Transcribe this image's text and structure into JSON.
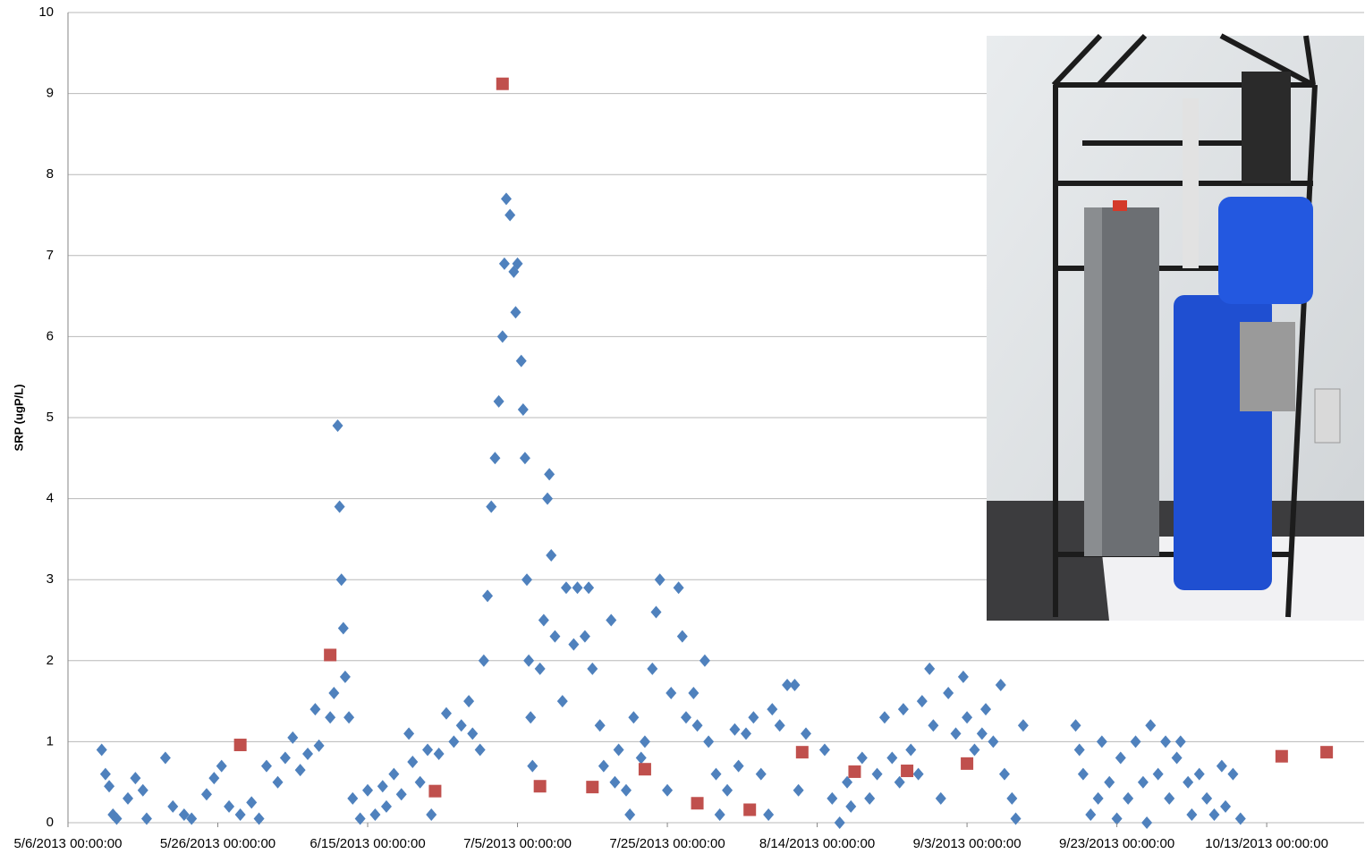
{
  "chart_data": {
    "type": "scatter",
    "y_label": "SRP (ugP/L)",
    "ylim": [
      0,
      10
    ],
    "yticks": [
      0,
      1,
      2,
      3,
      4,
      5,
      6,
      7,
      8,
      9,
      10
    ],
    "grid": true,
    "xlim": [
      "2013-05-06T00:00",
      "2013-10-26T00:00"
    ],
    "xticks": [
      {
        "value": "2013-05-06T00:00",
        "label": "5/6/2013 00:00:00"
      },
      {
        "value": "2013-05-26T00:00",
        "label": "5/26/2013 00:00:00"
      },
      {
        "value": "2013-06-15T00:00",
        "label": "6/15/2013 00:00:00"
      },
      {
        "value": "2013-07-05T00:00",
        "label": "7/5/2013 00:00:00"
      },
      {
        "value": "2013-07-25T00:00",
        "label": "7/25/2013 00:00:00"
      },
      {
        "value": "2013-08-14T00:00",
        "label": "8/14/2013 00:00:00"
      },
      {
        "value": "2013-09-03T00:00",
        "label": "9/3/2013 00:00:00"
      },
      {
        "value": "2013-09-23T00:00",
        "label": "9/23/2013 00:00:00"
      },
      {
        "value": "2013-10-13T00:00",
        "label": "10/13/2013 00:00:00"
      }
    ],
    "series": [
      {
        "color": "#4f81bd",
        "marker": "diamond",
        "x": [
          "2013-05-10T12:00",
          "2013-05-11T00:00",
          "2013-05-11T12:00",
          "2013-05-12T00:00",
          "2013-05-12T12:00",
          "2013-05-14T00:00",
          "2013-05-15T00:00",
          "2013-05-16T00:00",
          "2013-05-16T12:00",
          "2013-05-19T00:00",
          "2013-05-20T00:00",
          "2013-05-21T12:00",
          "2013-05-22T12:00",
          "2013-05-24T12:00",
          "2013-05-25T12:00",
          "2013-05-26T12:00",
          "2013-05-27T12:00",
          "2013-05-29T00:00",
          "2013-05-30T12:00",
          "2013-05-31T12:00",
          "2013-06-01T12:00",
          "2013-06-03T00:00",
          "2013-06-04T00:00",
          "2013-06-05T00:00",
          "2013-06-06T00:00",
          "2013-06-07T00:00",
          "2013-06-08T00:00",
          "2013-06-08T12:00",
          "2013-06-10T00:00",
          "2013-06-10T12:00",
          "2013-06-11T00:00",
          "2013-06-11T06:00",
          "2013-06-11T12:00",
          "2013-06-11T18:00",
          "2013-06-12T00:00",
          "2013-06-12T12:00",
          "2013-06-13T00:00",
          "2013-06-14T00:00",
          "2013-06-15T00:00",
          "2013-06-16T00:00",
          "2013-06-17T00:00",
          "2013-06-17T12:00",
          "2013-06-18T12:00",
          "2013-06-19T12:00",
          "2013-06-20T12:00",
          "2013-06-21T00:00",
          "2013-06-22T00:00",
          "2013-06-23T00:00",
          "2013-06-23T12:00",
          "2013-06-24T12:00",
          "2013-06-25T12:00",
          "2013-06-26T12:00",
          "2013-06-27T12:00",
          "2013-06-28T12:00",
          "2013-06-29T00:00",
          "2013-06-30T00:00",
          "2013-06-30T12:00",
          "2013-07-01T00:00",
          "2013-07-01T12:00",
          "2013-07-02T00:00",
          "2013-07-02T12:00",
          "2013-07-03T00:00",
          "2013-07-03T06:00",
          "2013-07-03T12:00",
          "2013-07-04T00:00",
          "2013-07-04T12:00",
          "2013-07-04T18:00",
          "2013-07-05T00:00",
          "2013-07-05T12:00",
          "2013-07-05T18:00",
          "2013-07-06T00:00",
          "2013-07-06T06:00",
          "2013-07-06T12:00",
          "2013-07-06T18:00",
          "2013-07-07T00:00",
          "2013-07-08T00:00",
          "2013-07-08T12:00",
          "2013-07-09T00:00",
          "2013-07-09T06:00",
          "2013-07-09T12:00",
          "2013-07-10T00:00",
          "2013-07-11T00:00",
          "2013-07-11T12:00",
          "2013-07-12T12:00",
          "2013-07-13T00:00",
          "2013-07-14T00:00",
          "2013-07-14T12:00",
          "2013-07-15T00:00",
          "2013-07-16T00:00",
          "2013-07-16T12:00",
          "2013-07-17T12:00",
          "2013-07-18T00:00",
          "2013-07-18T12:00",
          "2013-07-19T12:00",
          "2013-07-20T00:00",
          "2013-07-20T12:00",
          "2013-07-21T12:00",
          "2013-07-22T00:00",
          "2013-07-23T00:00",
          "2013-07-23T12:00",
          "2013-07-24T00:00",
          "2013-07-25T00:00",
          "2013-07-25T12:00",
          "2013-07-26T12:00",
          "2013-07-27T00:00",
          "2013-07-27T12:00",
          "2013-07-28T12:00",
          "2013-07-29T00:00",
          "2013-07-30T00:00",
          "2013-07-30T12:00",
          "2013-07-31T12:00",
          "2013-08-01T00:00",
          "2013-08-02T00:00",
          "2013-08-03T00:00",
          "2013-08-03T12:00",
          "2013-08-04T12:00",
          "2013-08-05T12:00",
          "2013-08-06T12:00",
          "2013-08-07T12:00",
          "2013-08-08T00:00",
          "2013-08-09T00:00",
          "2013-08-10T00:00",
          "2013-08-11T00:00",
          "2013-08-11T12:00",
          "2013-08-12T12:00",
          "2013-08-15T00:00",
          "2013-08-16T00:00",
          "2013-08-17T00:00",
          "2013-08-18T00:00",
          "2013-08-18T12:00",
          "2013-08-20T00:00",
          "2013-08-21T00:00",
          "2013-08-22T00:00",
          "2013-08-23T00:00",
          "2013-08-24T00:00",
          "2013-08-25T00:00",
          "2013-08-25T12:00",
          "2013-08-26T12:00",
          "2013-08-27T12:00",
          "2013-08-28T00:00",
          "2013-08-29T00:00",
          "2013-08-29T12:00",
          "2013-08-30T12:00",
          "2013-08-31T12:00",
          "2013-09-01T12:00",
          "2013-09-02T12:00",
          "2013-09-03T00:00",
          "2013-09-04T00:00",
          "2013-09-05T00:00",
          "2013-09-05T12:00",
          "2013-09-06T12:00",
          "2013-09-07T12:00",
          "2013-09-08T00:00",
          "2013-09-09T00:00",
          "2013-09-09T12:00",
          "2013-09-10T12:00",
          "2013-09-17T12:00",
          "2013-09-18T00:00",
          "2013-09-18T12:00",
          "2013-09-19T12:00",
          "2013-09-20T12:00",
          "2013-09-21T00:00",
          "2013-09-22T00:00",
          "2013-09-23T00:00",
          "2013-09-23T12:00",
          "2013-09-24T12:00",
          "2013-09-25T12:00",
          "2013-09-26T12:00",
          "2013-09-27T00:00",
          "2013-09-27T12:00",
          "2013-09-28T12:00",
          "2013-09-29T12:00",
          "2013-09-30T00:00",
          "2013-10-01T00:00",
          "2013-10-01T12:00",
          "2013-10-02T12:00",
          "2013-10-03T00:00",
          "2013-10-04T00:00",
          "2013-10-05T00:00",
          "2013-10-06T00:00",
          "2013-10-07T00:00",
          "2013-10-07T12:00",
          "2013-10-08T12:00",
          "2013-10-09T12:00"
        ],
        "values": [
          0.9,
          0.6,
          0.45,
          0.1,
          0.05,
          0.3,
          0.55,
          0.4,
          0.05,
          0.8,
          0.2,
          0.1,
          0.05,
          0.35,
          0.55,
          0.7,
          0.2,
          0.1,
          0.25,
          0.05,
          0.7,
          0.5,
          0.8,
          1.05,
          0.65,
          0.85,
          1.4,
          0.95,
          1.3,
          1.6,
          4.9,
          3.9,
          3.0,
          2.4,
          1.8,
          1.3,
          0.3,
          0.05,
          0.4,
          0.1,
          0.45,
          0.2,
          0.6,
          0.35,
          1.1,
          0.75,
          0.5,
          0.9,
          0.1,
          0.85,
          1.35,
          1.0,
          1.2,
          1.5,
          1.1,
          0.9,
          2.0,
          2.8,
          3.9,
          4.5,
          5.2,
          6.0,
          6.9,
          7.7,
          7.5,
          6.8,
          6.3,
          6.9,
          5.7,
          5.1,
          4.5,
          3.0,
          2.0,
          1.3,
          0.7,
          1.9,
          2.5,
          4.0,
          4.3,
          3.3,
          2.3,
          1.5,
          2.9,
          2.2,
          2.9,
          2.3,
          2.9,
          1.9,
          1.2,
          0.7,
          2.5,
          0.5,
          0.9,
          0.4,
          0.1,
          1.3,
          0.8,
          1.0,
          1.9,
          2.6,
          3.0,
          0.4,
          1.6,
          2.9,
          2.3,
          1.3,
          1.6,
          1.2,
          2.0,
          1.0,
          0.6,
          0.1,
          0.4,
          1.15,
          0.7,
          1.1,
          1.3,
          0.6,
          0.1,
          1.4,
          1.2,
          1.7,
          1.7,
          0.4,
          1.1,
          0.9,
          0.3,
          0.0,
          0.5,
          0.2,
          0.8,
          0.3,
          0.6,
          1.3,
          0.8,
          0.5,
          1.4,
          0.9,
          0.6,
          1.5,
          1.9,
          1.2,
          0.3,
          1.6,
          1.1,
          1.8,
          1.3,
          0.9,
          1.1,
          1.4,
          1.0,
          1.7,
          0.6,
          0.3,
          0.05,
          1.2,
          1.2,
          0.9,
          0.6,
          0.1,
          0.3,
          1.0,
          0.5,
          0.05,
          0.8,
          0.3,
          1.0,
          0.5,
          0.0,
          1.2,
          0.6,
          1.0,
          0.3,
          0.8,
          1.0,
          0.5,
          0.1,
          0.6,
          0.3,
          0.1,
          0.7,
          0.2,
          0.6,
          0.05
        ]
      },
      {
        "color": "#c0504d",
        "marker": "square",
        "x": [
          "2013-05-29T00:00",
          "2013-06-10T00:00",
          "2013-06-24T00:00",
          "2013-07-03T00:00",
          "2013-07-08T00:00",
          "2013-07-15T00:00",
          "2013-07-22T00:00",
          "2013-07-29T00:00",
          "2013-08-05T00:00",
          "2013-08-12T00:00",
          "2013-08-19T00:00",
          "2013-08-26T00:00",
          "2013-09-03T00:00",
          "2013-10-15T00:00",
          "2013-10-21T00:00"
        ],
        "values": [
          0.96,
          2.07,
          0.39,
          9.12,
          0.45,
          0.44,
          0.66,
          0.24,
          0.16,
          0.87,
          0.63,
          0.64,
          0.73,
          0.82,
          0.87
        ]
      }
    ]
  }
}
